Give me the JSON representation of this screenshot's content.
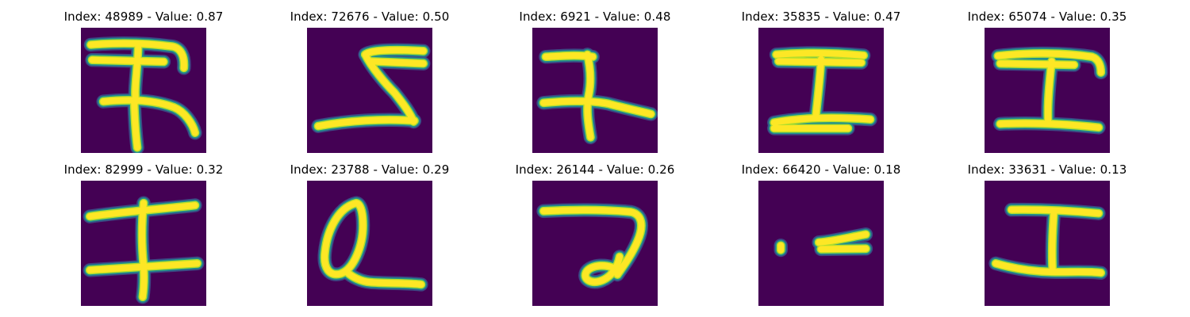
{
  "colors": {
    "background": "#440154",
    "stroke_core": "#fde725",
    "stroke_mid": "#b5de2b",
    "stroke_edge": "#21918c",
    "stroke_halo": "#3b528b"
  },
  "panels": [
    {
      "title": "Index: 48989 - Value: 0.87"
    },
    {
      "title": "Index: 72676 - Value: 0.50"
    },
    {
      "title": "Index: 6921 - Value: 0.48"
    },
    {
      "title": "Index: 35835 - Value: 0.47"
    },
    {
      "title": "Index: 65074 - Value: 0.35"
    },
    {
      "title": "Index: 82999 - Value: 0.32"
    },
    {
      "title": "Index: 23788 - Value: 0.29"
    },
    {
      "title": "Index: 26144 - Value: 0.26"
    },
    {
      "title": "Index: 66420 - Value: 0.18"
    },
    {
      "title": "Index: 33631 - Value: 0.13"
    }
  ]
}
